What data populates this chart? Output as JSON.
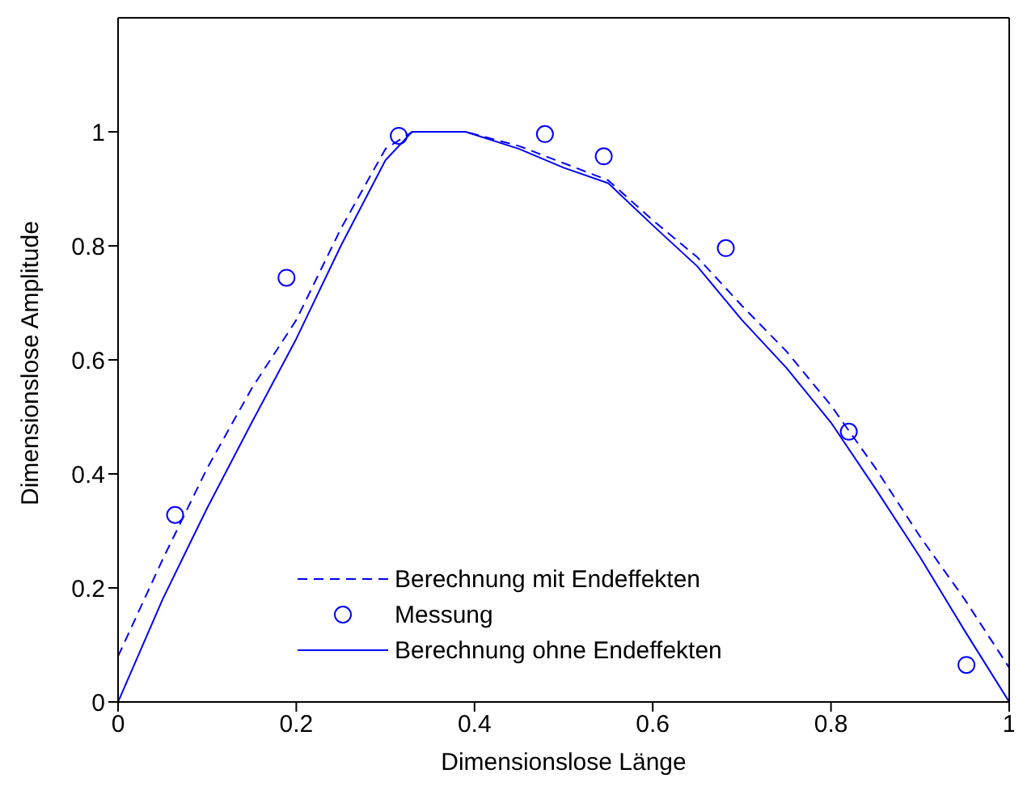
{
  "chart_data": {
    "type": "line",
    "xlabel": "Dimensionslose Länge",
    "ylabel": "Dimensionslose Amplitude",
    "xlim": [
      0,
      1
    ],
    "xticks": [
      0,
      0.2,
      0.4,
      0.6,
      0.8,
      1
    ],
    "ylim": [
      0,
      1.2
    ],
    "yticks": [
      0,
      0.2,
      0.4,
      0.6,
      0.8,
      1
    ],
    "legend": "bottom",
    "series": [
      {
        "name": "Berechnung mit Endeffekten",
        "line_style": "dashed",
        "color": "#0000ff",
        "x": [
          0,
          0.05,
          0.1,
          0.15,
          0.2,
          0.25,
          0.3,
          0.33,
          0.39,
          0.45,
          0.5,
          0.55,
          0.6,
          0.65,
          0.7,
          0.75,
          0.8,
          0.85,
          0.9,
          0.95,
          1
        ],
        "values": [
          0.08,
          0.25,
          0.41,
          0.55,
          0.67,
          0.83,
          0.97,
          1.0,
          1.0,
          0.975,
          0.945,
          0.915,
          0.845,
          0.78,
          0.695,
          0.615,
          0.52,
          0.41,
          0.29,
          0.18,
          0.06
        ]
      },
      {
        "name": "Messung",
        "type": "scatter",
        "marker": "circle",
        "color": "#0000ff",
        "x": [
          0.064,
          0.189,
          0.315,
          0.479,
          0.545,
          0.682,
          0.82,
          0.952
        ],
        "values": [
          0.328,
          0.744,
          0.993,
          0.996,
          0.957,
          0.796,
          0.474,
          0.065
        ]
      },
      {
        "name": "Berechnung ohne Endeffekten",
        "line_style": "solid",
        "color": "#0000ff",
        "x": [
          0,
          0.05,
          0.079,
          0.1,
          0.15,
          0.2,
          0.25,
          0.3,
          0.33,
          0.39,
          0.45,
          0.5,
          0.55,
          0.6,
          0.65,
          0.7,
          0.75,
          0.8,
          0.85,
          0.9,
          0.95,
          1
        ],
        "values": [
          0,
          0.18,
          0.273,
          0.34,
          0.49,
          0.637,
          0.8,
          0.95,
          1.0,
          1.0,
          0.97,
          0.937,
          0.91,
          0.836,
          0.764,
          0.67,
          0.586,
          0.49,
          0.374,
          0.254,
          0.125,
          0
        ]
      }
    ]
  }
}
